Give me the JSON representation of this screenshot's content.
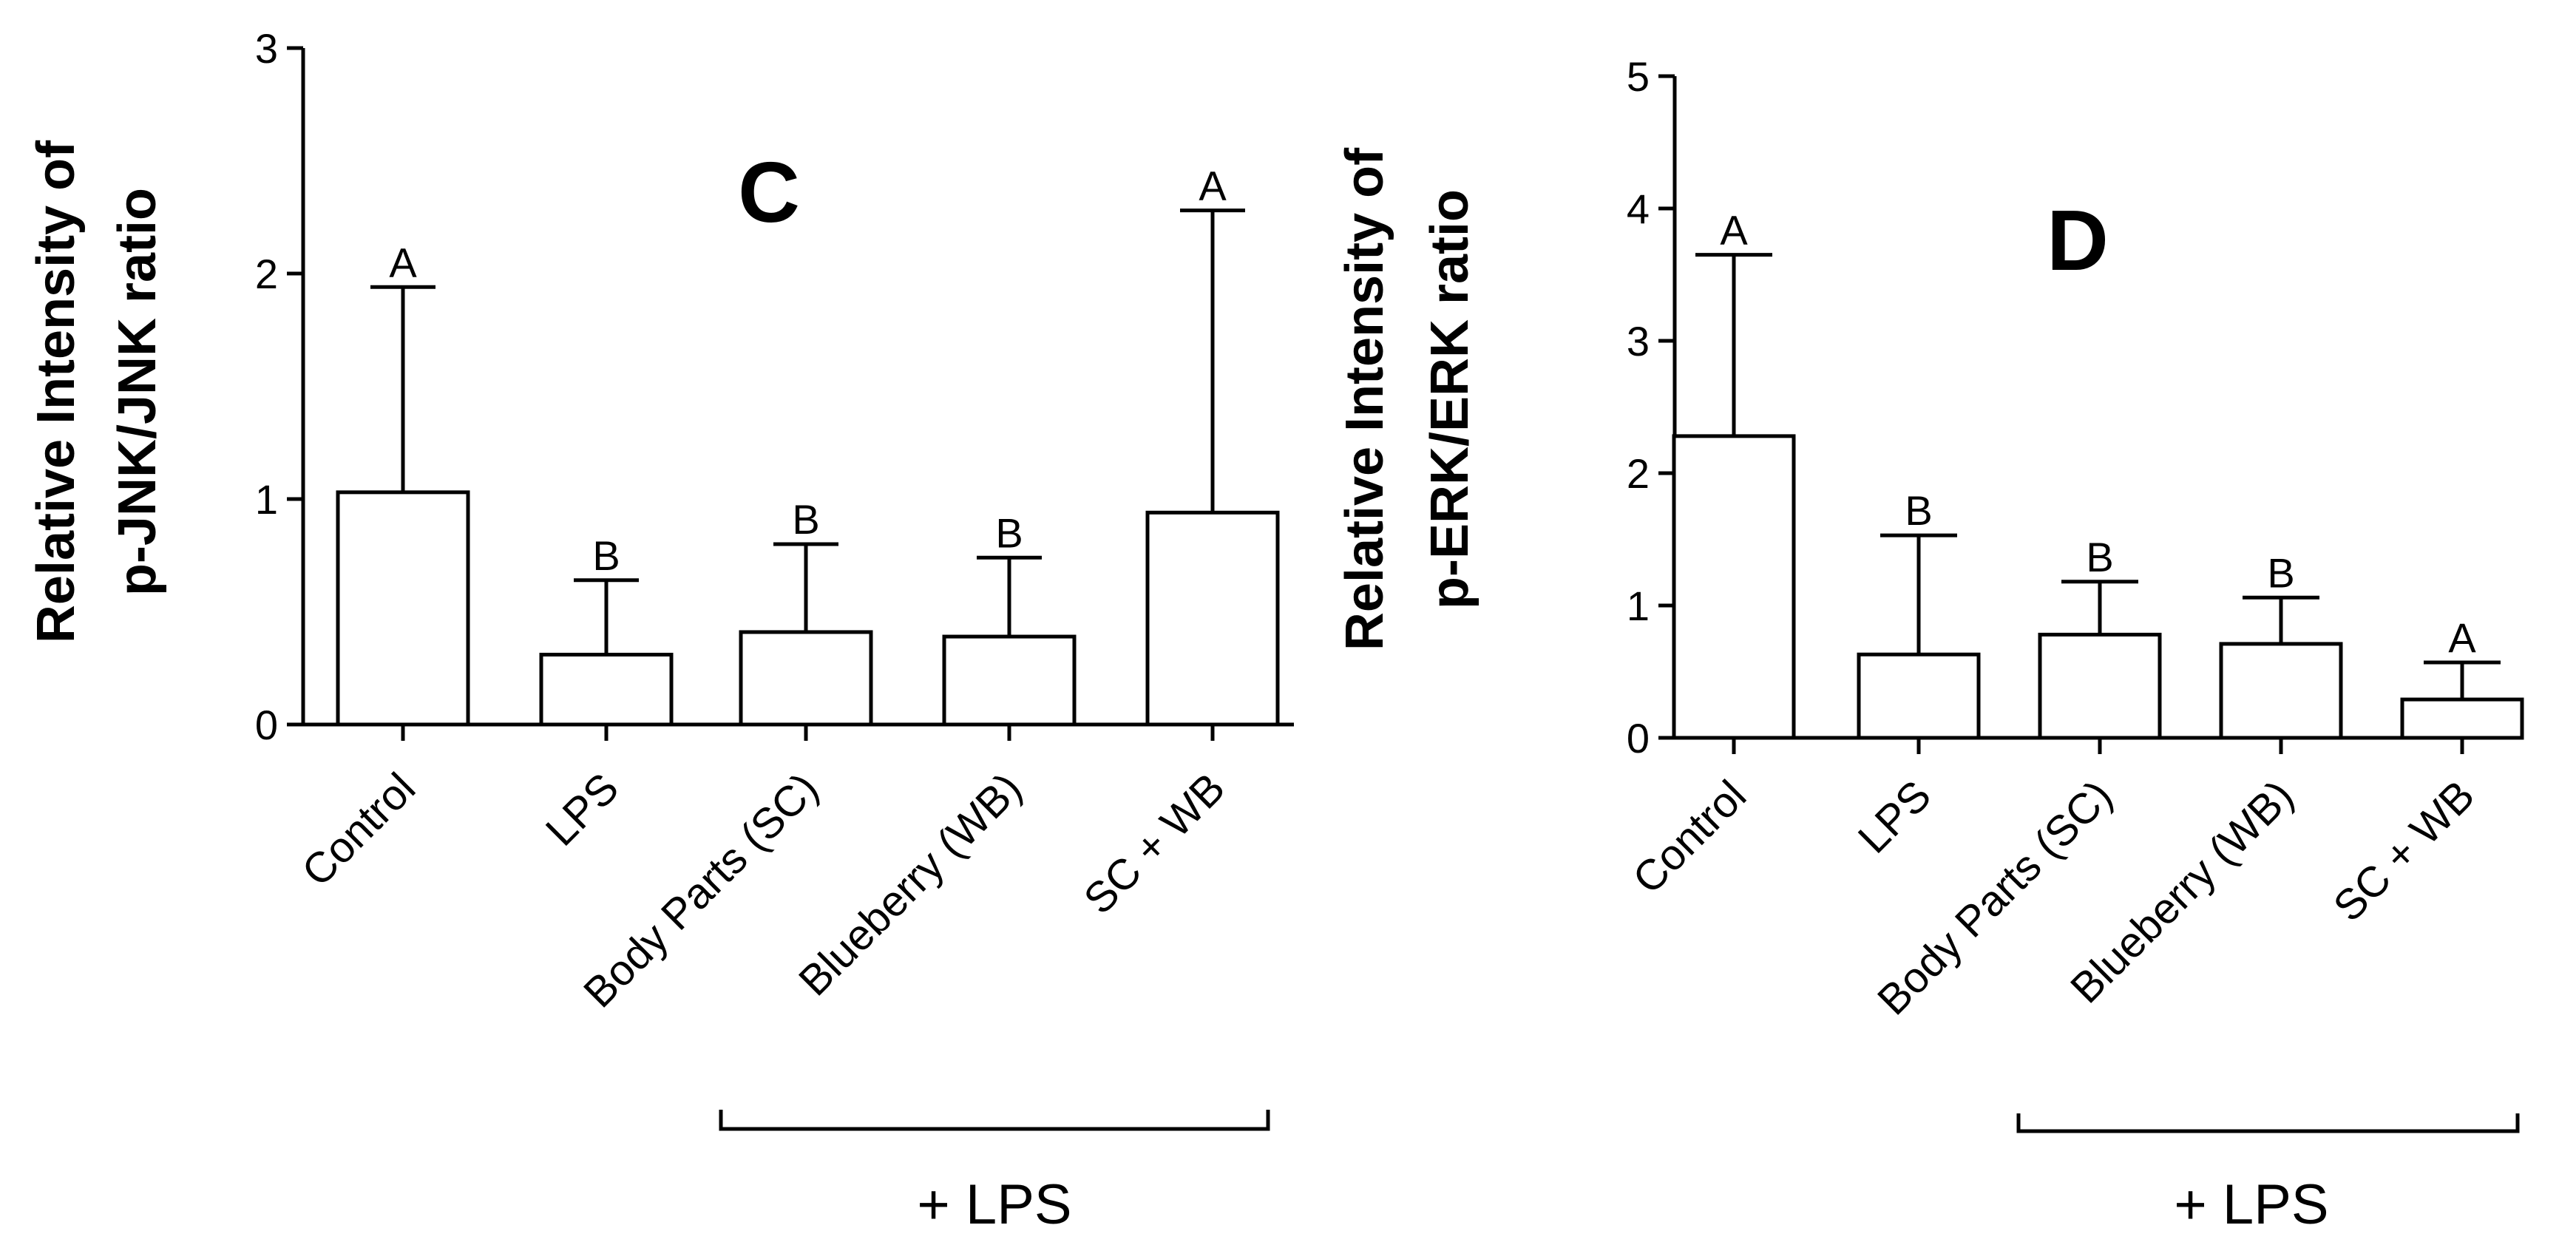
{
  "chart_data": [
    {
      "type": "bar",
      "panel": "C",
      "ylabel_lines": [
        "Relative Intensity of",
        "p-JNK/JNK ratio"
      ],
      "categories": [
        "Control",
        "LPS",
        "Body Parts (SC)",
        "Blueberry (WB)",
        "SC + WB"
      ],
      "values": [
        1.03,
        0.31,
        0.41,
        0.39,
        0.94
      ],
      "errors": [
        0.91,
        0.33,
        0.39,
        0.35,
        1.34
      ],
      "significance": [
        "A",
        "B",
        "B",
        "B",
        "A"
      ],
      "ylim": [
        0,
        3
      ],
      "yticks": [
        0,
        1,
        2,
        3
      ],
      "group_label": "+ LPS",
      "group_members": [
        "Body Parts (SC)",
        "Blueberry (WB)",
        "SC + WB"
      ]
    },
    {
      "type": "bar",
      "panel": "D",
      "ylabel_lines": [
        "Relative Intensity of",
        "p-ERK/ERK ratio"
      ],
      "categories": [
        "Control",
        "LPS",
        "Body Parts (SC)",
        "Blueberry (WB)",
        "SC + WB"
      ],
      "values": [
        2.28,
        0.63,
        0.78,
        0.71,
        0.29
      ],
      "errors": [
        1.37,
        0.9,
        0.4,
        0.35,
        0.28
      ],
      "significance": [
        "A",
        "B",
        "B",
        "B",
        "A"
      ],
      "ylim": [
        0,
        5
      ],
      "yticks": [
        0,
        1,
        2,
        3,
        4,
        5
      ],
      "group_label": "+ LPS",
      "group_members": [
        "Body Parts (SC)",
        "Blueberry (WB)",
        "SC + WB"
      ]
    }
  ]
}
